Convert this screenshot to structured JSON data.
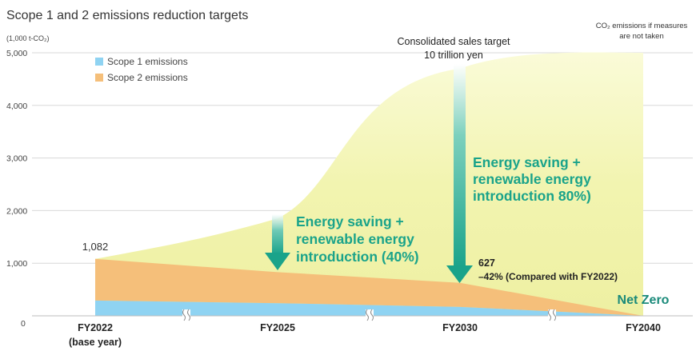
{
  "chart_data": {
    "type": "area",
    "title": "Scope 1 and 2 emissions reduction targets",
    "y_unit_label": "(1,000 t-CO₂)",
    "ylim": [
      0,
      5000
    ],
    "y_ticks": [
      {
        "value": 0,
        "label": "0"
      },
      {
        "value": 1000,
        "label": "1,000"
      },
      {
        "value": 2000,
        "label": "2,000"
      },
      {
        "value": 3000,
        "label": "3,000"
      },
      {
        "value": 4000,
        "label": "4,000"
      },
      {
        "value": 5000,
        "label": "5,000"
      }
    ],
    "categories": [
      {
        "label": "FY2022",
        "sublabel": "(base year)"
      },
      {
        "label": "FY2025",
        "sublabel": ""
      },
      {
        "label": "FY2030",
        "sublabel": ""
      },
      {
        "label": "FY2040",
        "sublabel": ""
      }
    ],
    "series": [
      {
        "name": "Scope 1 emissions",
        "color": "#8fd3f2",
        "values": [
          290,
          240,
          170,
          0
        ]
      },
      {
        "name": "Scope 2 emissions",
        "color": "#f5bf7a",
        "values": [
          792,
          590,
          457,
          0
        ]
      }
    ],
    "bau": {
      "name": "CO₂ emissions if measures are not taken",
      "label_line1": "CO₂ emissions if measures",
      "label_line2": "are not taken",
      "values": [
        1082,
        1850,
        4700,
        5000
      ],
      "color": "#f1f2a8"
    },
    "annotations": {
      "start_value": "1,082",
      "sales_target_line1": "Consolidated sales target",
      "sales_target_line2": "10 trillion yen",
      "saving_40": [
        "Energy saving +",
        "renewable energy",
        "introduction (40%)"
      ],
      "saving_80": [
        "Energy saving +",
        "renewable energy",
        "introduction 80%)"
      ],
      "fy2030_value": "627",
      "fy2030_reduction": "–42% (Compared with FY2022)",
      "net_zero": "Net Zero"
    },
    "colors": {
      "accent_green": "#1aa38a",
      "net_zero_text": "#1a8a7a",
      "grid": "#d8d8d8"
    }
  }
}
